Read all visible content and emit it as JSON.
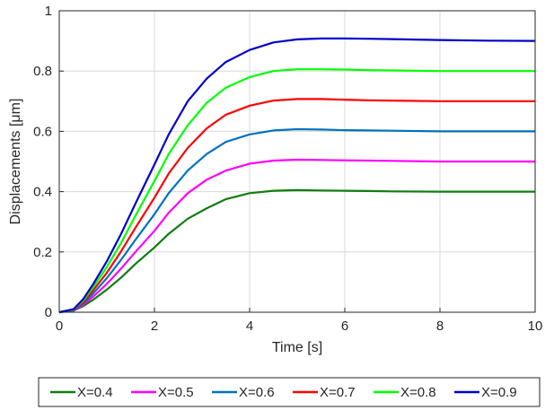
{
  "chart_data": {
    "type": "line",
    "title": "",
    "xlabel": "Time [s]",
    "ylabel": "Displacements [μm]",
    "xlim": [
      0,
      10
    ],
    "ylim": [
      0,
      1
    ],
    "xticks": [
      0,
      2,
      4,
      6,
      8,
      10
    ],
    "yticks": [
      0,
      0.2,
      0.4,
      0.6,
      0.8,
      1
    ],
    "xtick_labels": [
      "0",
      "2",
      "4",
      "6",
      "8",
      "10"
    ],
    "ytick_labels": [
      "0",
      "0.2",
      "0.4",
      "0.6",
      "0.8",
      "1"
    ],
    "grid": true,
    "legend_position": "bottom-outside",
    "x": [
      0,
      0.3,
      0.5,
      0.7,
      1.0,
      1.3,
      1.6,
      2.0,
      2.3,
      2.7,
      3.1,
      3.5,
      4.0,
      4.5,
      5.0,
      5.5,
      6.0,
      6.5,
      7.0,
      8.0,
      9.0,
      10.0
    ],
    "series": [
      {
        "name": "X=0.4",
        "color": "#0f7d0f",
        "values": [
          0,
          0.005,
          0.02,
          0.04,
          0.075,
          0.115,
          0.16,
          0.215,
          0.26,
          0.31,
          0.345,
          0.375,
          0.395,
          0.403,
          0.405,
          0.404,
          0.403,
          0.402,
          0.401,
          0.4,
          0.4,
          0.4
        ]
      },
      {
        "name": "X=0.5",
        "color": "#ff00ff",
        "values": [
          0,
          0.006,
          0.024,
          0.05,
          0.094,
          0.145,
          0.2,
          0.27,
          0.33,
          0.395,
          0.44,
          0.47,
          0.493,
          0.503,
          0.506,
          0.505,
          0.504,
          0.503,
          0.502,
          0.5,
          0.5,
          0.5
        ]
      },
      {
        "name": "X=0.6",
        "color": "#0072bd",
        "values": [
          0,
          0.007,
          0.029,
          0.06,
          0.113,
          0.174,
          0.24,
          0.325,
          0.395,
          0.47,
          0.525,
          0.565,
          0.59,
          0.603,
          0.607,
          0.606,
          0.604,
          0.603,
          0.602,
          0.6,
          0.6,
          0.6
        ]
      },
      {
        "name": "X=0.7",
        "color": "#ff0000",
        "values": [
          0,
          0.008,
          0.033,
          0.07,
          0.131,
          0.202,
          0.28,
          0.38,
          0.46,
          0.545,
          0.61,
          0.655,
          0.685,
          0.702,
          0.707,
          0.707,
          0.705,
          0.703,
          0.702,
          0.7,
          0.7,
          0.7
        ]
      },
      {
        "name": "X=0.8",
        "color": "#00ff00",
        "values": [
          0,
          0.009,
          0.038,
          0.08,
          0.15,
          0.23,
          0.32,
          0.435,
          0.525,
          0.62,
          0.695,
          0.745,
          0.78,
          0.8,
          0.806,
          0.806,
          0.805,
          0.803,
          0.802,
          0.8,
          0.8,
          0.8
        ]
      },
      {
        "name": "X=0.9",
        "color": "#0000cd",
        "values": [
          0,
          0.01,
          0.043,
          0.09,
          0.169,
          0.26,
          0.36,
          0.49,
          0.59,
          0.7,
          0.775,
          0.83,
          0.87,
          0.895,
          0.905,
          0.908,
          0.908,
          0.907,
          0.906,
          0.903,
          0.901,
          0.9
        ]
      }
    ]
  }
}
